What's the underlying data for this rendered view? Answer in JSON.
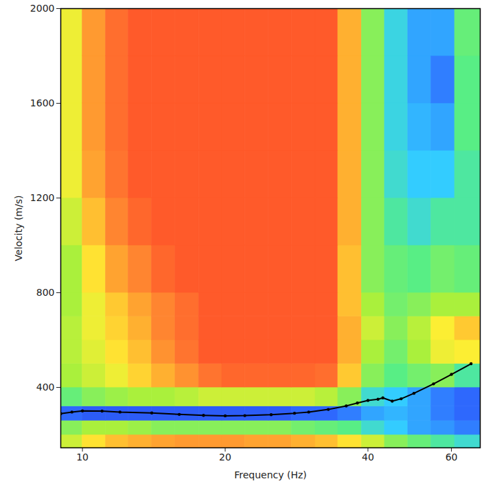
{
  "chart_data": {
    "type": "heatmap",
    "x_label": "Frequency (Hz)",
    "y_label": "Velocity (m/s)",
    "log": "x",
    "grid": false,
    "xlim": [
      9,
      69
    ],
    "xticks": [
      10,
      20,
      40,
      60
    ],
    "ylim": [
      145,
      2000
    ],
    "yticks": [
      400,
      800,
      1200,
      1600,
      2000
    ],
    "zlim": [
      0,
      1
    ],
    "cells": {
      "frequency_edges": [
        9,
        10,
        11.2,
        12.5,
        14,
        15.7,
        17.6,
        19.7,
        22,
        24.7,
        27.6,
        31,
        34.6,
        38.8,
        43.4,
        48.6,
        54.4,
        61,
        69
      ],
      "velocity_edges": [
        145,
        200,
        260,
        320,
        400,
        500,
        600,
        700,
        800,
        1000,
        1200,
        1400,
        1600,
        1800,
        2000
      ],
      "values": [
        [
          0.55,
          0.65,
          0.72,
          0.75,
          0.78,
          0.8,
          0.8,
          0.8,
          0.78,
          0.78,
          0.75,
          0.72,
          0.65,
          0.55,
          0.45,
          0.4,
          0.35,
          0.3
        ],
        [
          0.45,
          0.5,
          0.5,
          0.48,
          0.45,
          0.45,
          0.45,
          0.45,
          0.45,
          0.45,
          0.42,
          0.4,
          0.38,
          0.3,
          0.25,
          0.2,
          0.18,
          0.15
        ],
        [
          0.12,
          0.1,
          0.1,
          0.1,
          0.1,
          0.1,
          0.1,
          0.1,
          0.1,
          0.1,
          0.12,
          0.12,
          0.15,
          0.2,
          0.22,
          0.2,
          0.15,
          0.12
        ],
        [
          0.4,
          0.45,
          0.48,
          0.5,
          0.5,
          0.52,
          0.55,
          0.55,
          0.55,
          0.55,
          0.55,
          0.52,
          0.45,
          0.3,
          0.25,
          0.2,
          0.15,
          0.12
        ],
        [
          0.5,
          0.55,
          0.6,
          0.68,
          0.75,
          0.82,
          0.9,
          0.95,
          0.95,
          0.95,
          0.95,
          0.92,
          0.7,
          0.45,
          0.38,
          0.42,
          0.45,
          0.35
        ],
        [
          0.52,
          0.58,
          0.65,
          0.72,
          0.82,
          0.9,
          1,
          1,
          1,
          1,
          1,
          1,
          0.75,
          0.5,
          0.42,
          0.5,
          0.6,
          0.62
        ],
        [
          0.52,
          0.6,
          0.68,
          0.75,
          0.85,
          0.92,
          1,
          1,
          1,
          1,
          1,
          1,
          0.75,
          0.55,
          0.45,
          0.52,
          0.62,
          0.7
        ],
        [
          0.5,
          0.6,
          0.7,
          0.78,
          0.85,
          0.92,
          1,
          1,
          1,
          1,
          1,
          1,
          0.72,
          0.5,
          0.42,
          0.45,
          0.5,
          0.5
        ],
        [
          0.5,
          0.65,
          0.78,
          0.85,
          0.95,
          1,
          1,
          1,
          1,
          1,
          1,
          1,
          0.72,
          0.45,
          0.4,
          0.38,
          0.42,
          0.4
        ],
        [
          0.55,
          0.72,
          0.85,
          0.95,
          1,
          1,
          1,
          1,
          1,
          1,
          1,
          1,
          0.75,
          0.45,
          0.35,
          0.3,
          0.35,
          0.35
        ],
        [
          0.6,
          0.78,
          0.9,
          1,
          1,
          1,
          1,
          1,
          1,
          1,
          1,
          1,
          0.75,
          0.45,
          0.3,
          0.25,
          0.25,
          0.35
        ],
        [
          0.6,
          0.8,
          0.92,
          1,
          1,
          1,
          1,
          1,
          1,
          1,
          1,
          1,
          0.75,
          0.45,
          0.28,
          0.22,
          0.2,
          0.38
        ],
        [
          0.6,
          0.8,
          0.92,
          1,
          1,
          1,
          1,
          1,
          1,
          1,
          1,
          1,
          0.75,
          0.45,
          0.28,
          0.2,
          0.15,
          0.38
        ],
        [
          0.6,
          0.8,
          0.92,
          1,
          1,
          1,
          1,
          1,
          1,
          1,
          1,
          1,
          0.75,
          0.45,
          0.28,
          0.2,
          0.2,
          0.4
        ]
      ]
    },
    "curve": {
      "x": [
        9,
        9.5,
        10,
        11,
        12,
        14,
        16,
        18,
        20,
        22,
        25,
        28,
        30,
        33,
        36,
        38,
        40,
        42,
        43,
        45,
        47,
        50,
        55,
        60,
        66
      ],
      "values": [
        289,
        296,
        301,
        300,
        296,
        292,
        286,
        282,
        280,
        281,
        285,
        291,
        296,
        307,
        322,
        334,
        345,
        350,
        356,
        342,
        352,
        375,
        415,
        455,
        500
      ],
      "color": "#000000",
      "marker": "circle",
      "line_style": "solid"
    }
  }
}
